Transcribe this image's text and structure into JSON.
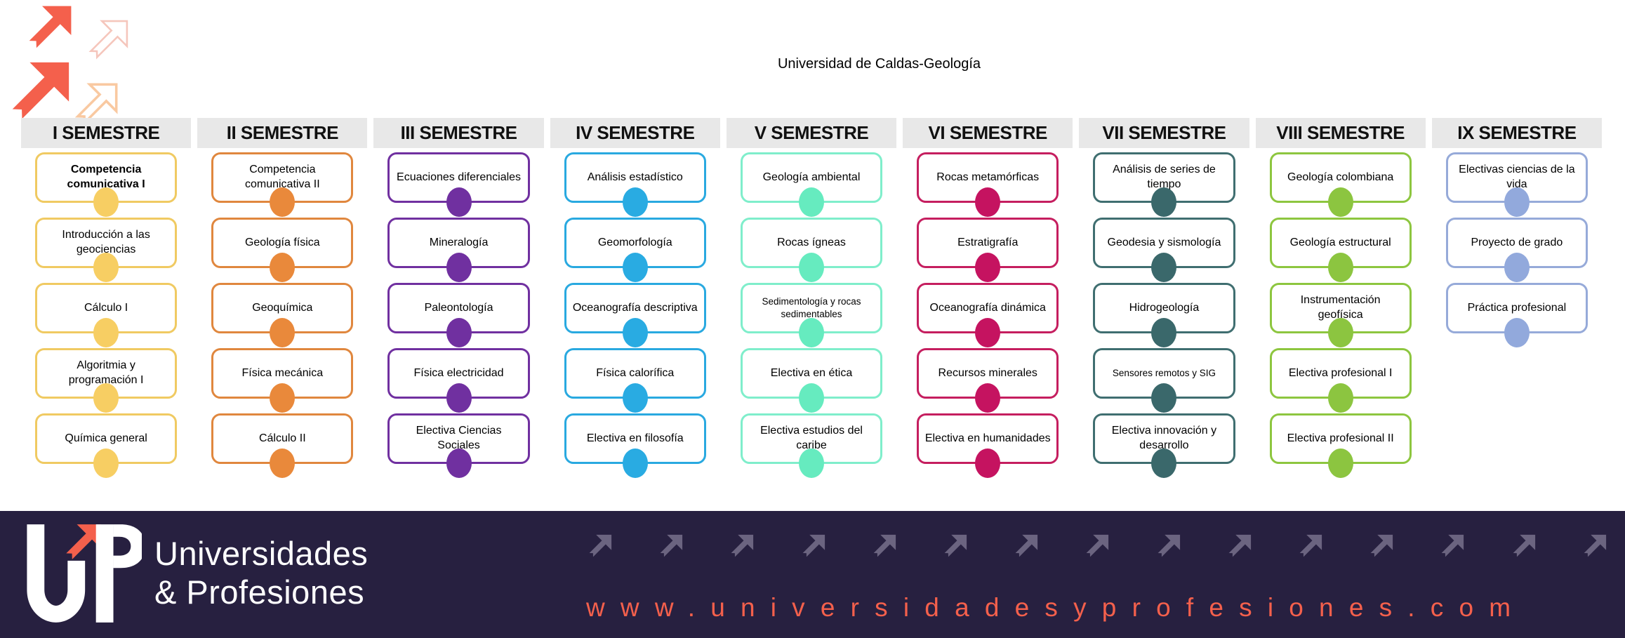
{
  "title": "Universidad de Caldas-Geología",
  "colors": {
    "header_bg": "#E8E8E8",
    "banner_bg": "#272040",
    "banner_arrow": "#6B6480",
    "url_color": "#F4604C",
    "deco_solid": "#F4604C",
    "deco_outline_pink": "#F5C6BC",
    "deco_outline_peach": "#F9C9A1"
  },
  "banner": {
    "brand_line1": "Universidades",
    "brand_line2": "& Profesiones",
    "url": "www.universidadesyprofesiones.com"
  },
  "semesters": [
    {
      "label": "I SEMESTRE",
      "border_color": "#F0CA62",
      "circle_color": "#F7CE63",
      "courses": [
        {
          "name": "Competencia comunicativa I",
          "bold": true
        },
        {
          "name": "Introducción a las geociencias"
        },
        {
          "name": "Cálculo I"
        },
        {
          "name": "Algoritmia y programación I"
        },
        {
          "name": "Química general"
        }
      ]
    },
    {
      "label": "II SEMESTRE",
      "border_color": "#E0873E",
      "circle_color": "#E9893B",
      "courses": [
        {
          "name": "Competencia comunicativa II"
        },
        {
          "name": "Geología física"
        },
        {
          "name": "Geoquímica"
        },
        {
          "name": "Física mecánica"
        },
        {
          "name": "Cálculo II"
        }
      ]
    },
    {
      "label": "III SEMESTRE",
      "border_color": "#7030A0",
      "circle_color": "#7030A0",
      "courses": [
        {
          "name": "Ecuaciones diferenciales"
        },
        {
          "name": "Mineralogía"
        },
        {
          "name": "Paleontología"
        },
        {
          "name": "Física electricidad"
        },
        {
          "name": "Electiva Ciencias Sociales"
        }
      ]
    },
    {
      "label": "IV SEMESTRE",
      "border_color": "#29A9E0",
      "circle_color": "#29ABE2",
      "courses": [
        {
          "name": "Análisis estadístico"
        },
        {
          "name": "Geomorfología"
        },
        {
          "name": "Oceanografía descriptiva"
        },
        {
          "name": "Física calorífica"
        },
        {
          "name": "Electiva en filosofía"
        }
      ]
    },
    {
      "label": "V SEMESTRE",
      "border_color": "#7FEECB",
      "circle_color": "#66EBBF",
      "courses": [
        {
          "name": "Geología ambiental"
        },
        {
          "name": "Rocas ígneas"
        },
        {
          "name": "Sedimentología y rocas sedimentables",
          "small": true
        },
        {
          "name": "Electiva en ética"
        },
        {
          "name": "Electiva estudios del caribe"
        }
      ]
    },
    {
      "label": "VI SEMESTRE",
      "border_color": "#C51E5F",
      "circle_color": "#C51360",
      "courses": [
        {
          "name": "Rocas metamórficas"
        },
        {
          "name": "Estratigrafía"
        },
        {
          "name": "Oceanografía dinámica"
        },
        {
          "name": "Recursos minerales"
        },
        {
          "name": "Electiva en humanidades"
        }
      ]
    },
    {
      "label": "VII SEMESTRE",
      "border_color": "#3F6E70",
      "circle_color": "#3A686B",
      "courses": [
        {
          "name": "Análisis de series de tiempo"
        },
        {
          "name": "Geodesia y sismología"
        },
        {
          "name": "Hidrogeología"
        },
        {
          "name": "Sensores remotos y SIG",
          "small": true
        },
        {
          "name": "Electiva innovación y desarrollo"
        }
      ]
    },
    {
      "label": "VIII SEMESTRE",
      "border_color": "#8DC63F",
      "circle_color": "#8CC540",
      "courses": [
        {
          "name": "Geología colombiana"
        },
        {
          "name": "Geología estructural"
        },
        {
          "name": "Instrumentación geofísica"
        },
        {
          "name": "Electiva profesional I"
        },
        {
          "name": "Electiva profesional II"
        }
      ]
    },
    {
      "label": "IX SEMESTRE",
      "border_color": "#96AAD9",
      "circle_color": "#92A9DC",
      "courses": [
        {
          "name": "Electivas ciencias de la vida"
        },
        {
          "name": "Proyecto de grado"
        },
        {
          "name": "Práctica profesional"
        }
      ]
    }
  ]
}
